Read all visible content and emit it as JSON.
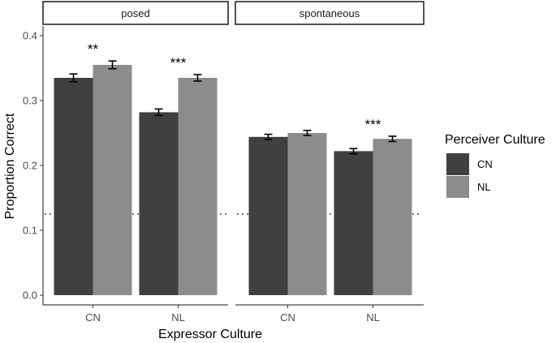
{
  "chart_data": {
    "type": "bar",
    "xlabel": "Expressor Culture",
    "ylabel": "Proportion Correct",
    "ylim": [
      0,
      0.4
    ],
    "yticks": [
      "0.0",
      "0.1",
      "0.2",
      "0.3",
      "0.4"
    ],
    "chance_line": 0.125,
    "legend": {
      "title": "Perceiver Culture",
      "entries": [
        {
          "label": "CN",
          "color": "#404040"
        },
        {
          "label": "NL",
          "color": "#8c8c8c"
        }
      ]
    },
    "panels": [
      {
        "label": "posed",
        "categories": [
          "CN",
          "NL"
        ],
        "series": [
          {
            "name": "CN",
            "values": [
              0.335,
              0.282
            ],
            "errors": [
              0.006,
              0.005
            ]
          },
          {
            "name": "NL",
            "values": [
              0.355,
              0.335
            ],
            "errors": [
              0.006,
              0.005
            ]
          }
        ],
        "significance": [
          "**",
          "***"
        ]
      },
      {
        "label": "spontaneous",
        "categories": [
          "CN",
          "NL"
        ],
        "series": [
          {
            "name": "CN",
            "values": [
              0.244,
              0.222
            ],
            "errors": [
              0.004,
              0.004
            ]
          },
          {
            "name": "NL",
            "values": [
              0.25,
              0.241
            ],
            "errors": [
              0.004,
              0.004
            ]
          }
        ],
        "significance": [
          "",
          "***"
        ]
      }
    ]
  }
}
